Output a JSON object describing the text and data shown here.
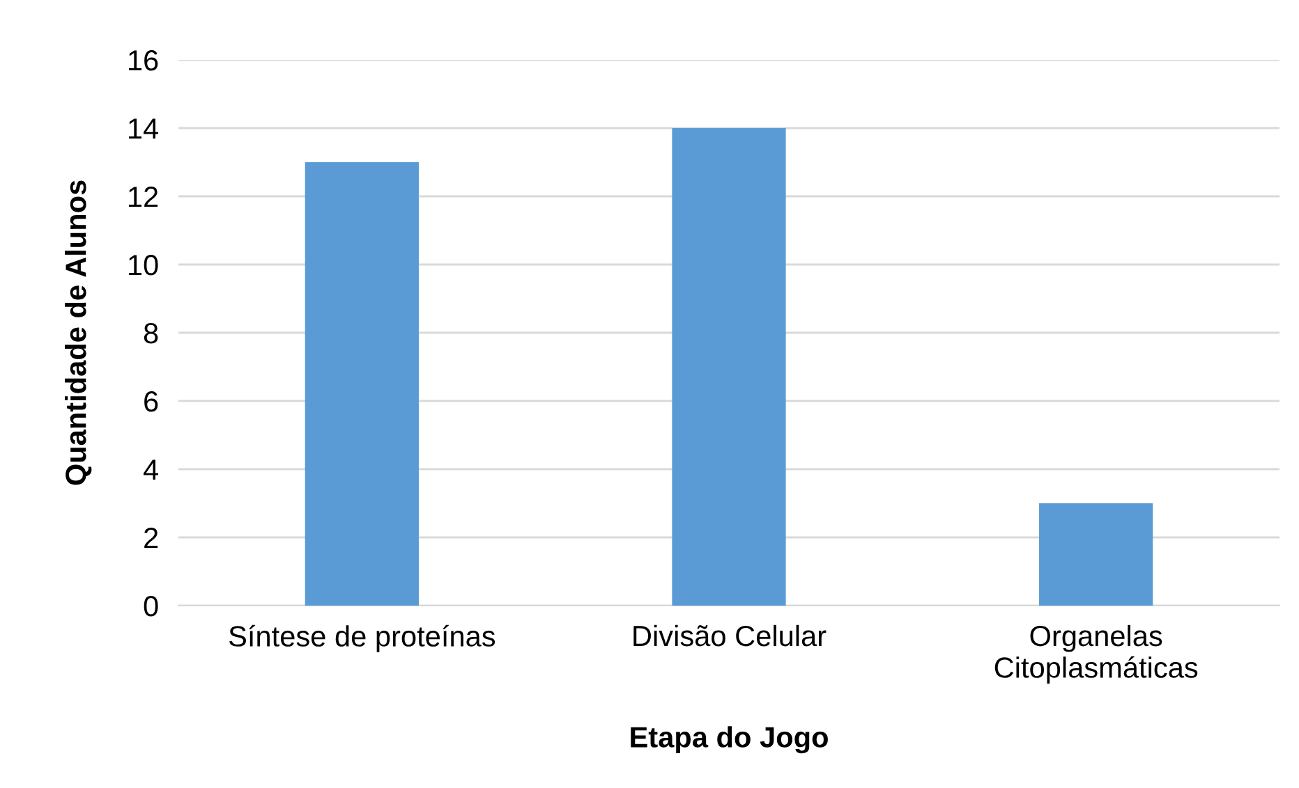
{
  "chart_data": {
    "type": "bar",
    "xlabel": "Etapa do Jogo",
    "ylabel": "Quantidade de Alunos",
    "categories": [
      "Síntese de proteínas",
      "Divisão Celular",
      "Organelas\nCitoplasmáticas"
    ],
    "values": [
      13,
      14,
      3
    ],
    "color": "#5b9bd5",
    "ylim": [
      0,
      16
    ],
    "yticks": [
      0,
      2,
      4,
      6,
      8,
      10,
      12,
      14,
      16
    ],
    "grid": "y",
    "legend": false
  }
}
